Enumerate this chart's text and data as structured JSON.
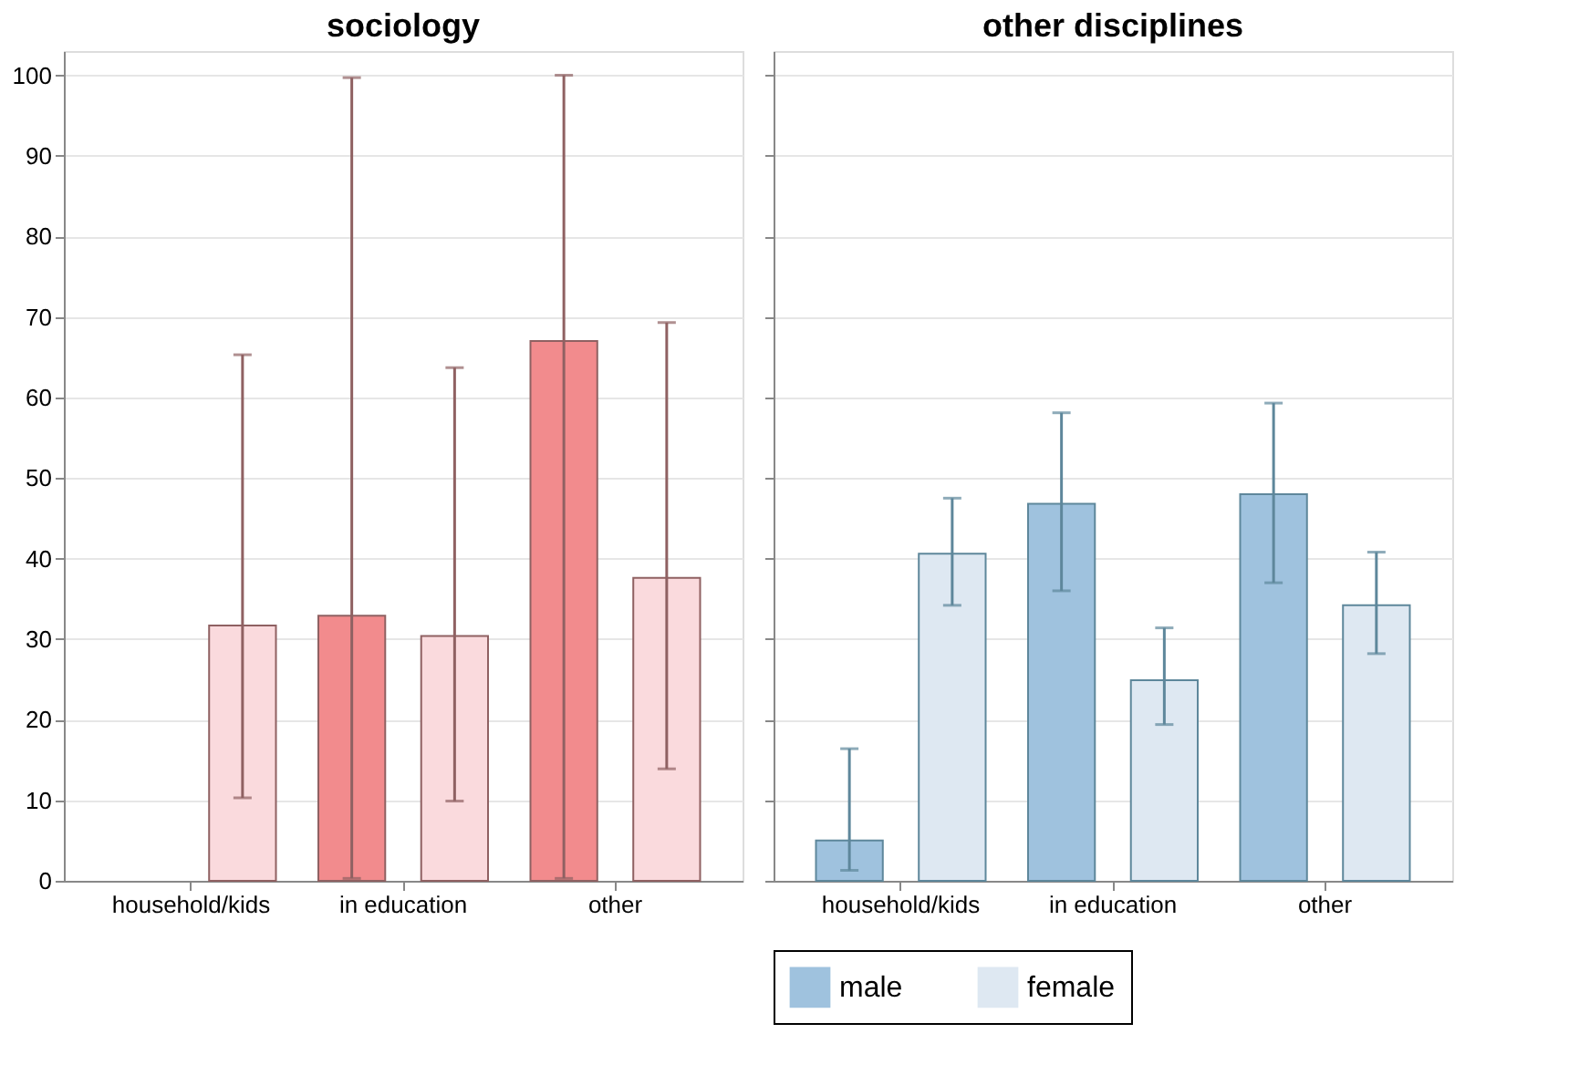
{
  "chart_data": [
    {
      "type": "bar",
      "title": "sociology",
      "categories": [
        "household/kids",
        "in education",
        "other"
      ],
      "ylim": [
        0,
        103
      ],
      "yticks": [
        0,
        10,
        20,
        30,
        40,
        50,
        60,
        70,
        80,
        90,
        100
      ],
      "grid": "y",
      "series": [
        {
          "color": "#f28b8d",
          "values": [
            null,
            32.9,
            67
          ],
          "errors": [
            null,
            [
              0.3,
              99.7
            ],
            [
              0.3,
              100
            ]
          ]
        },
        {
          "color": "#fadadd",
          "values": [
            31.7,
            30.4,
            37.6
          ],
          "errors": [
            [
              10.3,
              65.3
            ],
            [
              9.9,
              63.7
            ],
            [
              13.9,
              69.3
            ]
          ]
        }
      ]
    },
    {
      "type": "bar",
      "title": "other disciplines",
      "categories": [
        "household/kids",
        "in education",
        "other"
      ],
      "ylim": [
        0,
        103
      ],
      "yticks": [
        0,
        10,
        20,
        30,
        40,
        50,
        60,
        70,
        80,
        90,
        100
      ],
      "grid": "y",
      "tick_labels": "x",
      "legend": "bottom",
      "series": [
        {
          "name": "male",
          "color": "#9fc2de",
          "values": [
            5,
            46.8,
            48
          ],
          "errors": [
            [
              1.3,
              16.4
            ],
            [
              36,
              58.1
            ],
            [
              37,
              59.3
            ]
          ]
        },
        {
          "name": "female",
          "color": "#dee8f2",
          "values": [
            40.6,
            24.9,
            34.2
          ],
          "errors": [
            [
              34.2,
              47.5
            ],
            [
              19.4,
              31.4
            ],
            [
              28.2,
              40.8
            ]
          ]
        }
      ]
    }
  ]
}
